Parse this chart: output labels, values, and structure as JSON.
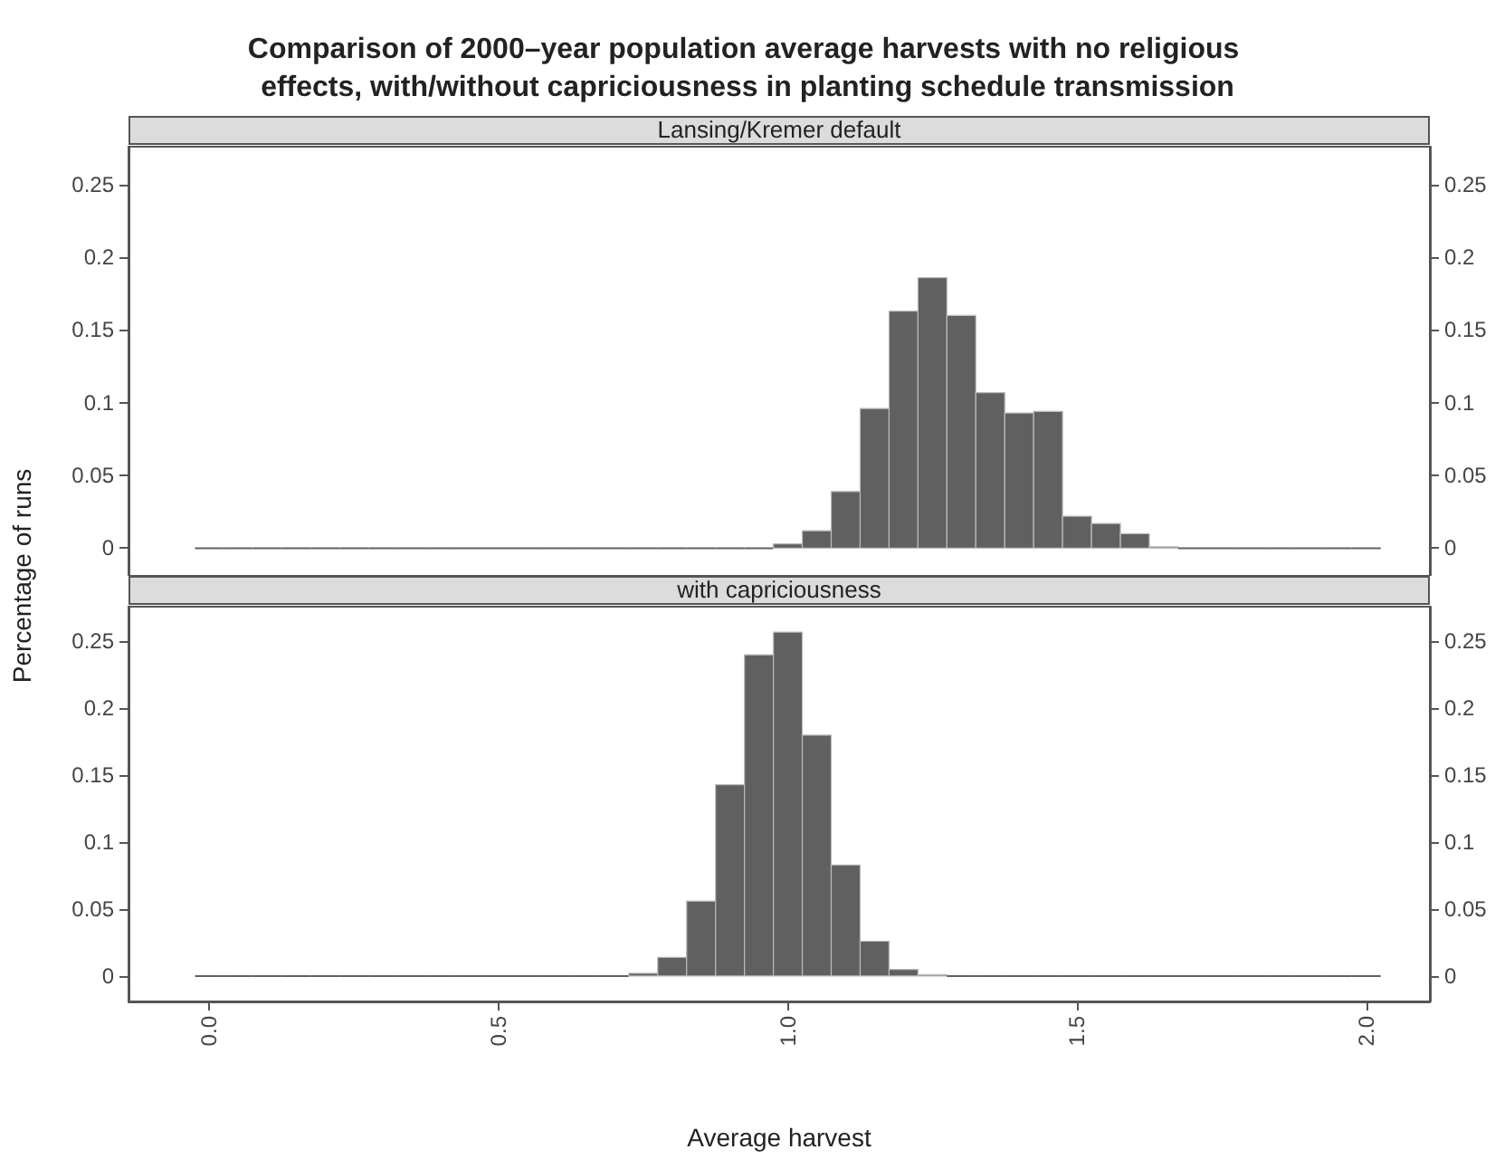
{
  "chart_data": [
    {
      "type": "histogram",
      "title": "Comparison of 2000–year population average harvests with no religious effects, with/without capriciousness in planting schedule transmission",
      "subtitle": "Lansing/Kremer default",
      "ylabel": "Percentage of runs",
      "color": "#606060",
      "bins": [
        -0.025,
        0.025,
        0.075,
        0.125,
        0.175,
        0.225,
        0.275,
        0.325,
        0.375,
        0.425,
        0.475,
        0.525,
        0.575,
        0.625,
        0.675,
        0.725,
        0.775,
        0.825,
        0.875,
        0.925,
        0.975,
        1.025,
        1.075,
        1.125,
        1.175,
        1.225,
        1.275,
        1.325,
        1.375,
        1.425,
        1.475,
        1.525,
        1.575,
        1.625,
        1.675,
        1.725,
        1.775,
        1.825,
        1.875,
        1.925,
        1.975,
        2.025
      ],
      "values": [
        0,
        0,
        0,
        0,
        0,
        0,
        0,
        0,
        0,
        0,
        0,
        0,
        0,
        0,
        0,
        0,
        0,
        0,
        0,
        0,
        0.003,
        0.012,
        0.039,
        0.096,
        0.163,
        0.186,
        0.16,
        0.107,
        0.093,
        0.094,
        0.022,
        0.017,
        0.01,
        0.001,
        0,
        0,
        0,
        0,
        0,
        0,
        0
      ],
      "xlim": [
        -0.14,
        2.11
      ],
      "ylim": [
        -0.019,
        0.276
      ],
      "yticks": [
        0,
        0.05,
        0.1,
        0.15,
        0.2,
        0.25
      ],
      "y2lim": [
        -0.019,
        0.276
      ],
      "y2ticks": [
        0,
        0.05,
        0.1,
        0.15,
        0.2,
        0.25
      ],
      "tick_labels": "y"
    },
    {
      "type": "histogram",
      "subtitle": "with capriciousness",
      "xlabel": "Average harvest",
      "color": "#606060",
      "bins": [
        -0.025,
        0.025,
        0.075,
        0.125,
        0.175,
        0.225,
        0.275,
        0.325,
        0.375,
        0.425,
        0.475,
        0.525,
        0.575,
        0.625,
        0.675,
        0.725,
        0.775,
        0.825,
        0.875,
        0.925,
        0.975,
        1.025,
        1.075,
        1.125,
        1.175,
        1.225,
        1.275,
        1.325,
        1.375,
        1.425,
        1.475,
        1.525,
        1.575,
        1.625,
        1.675,
        1.725,
        1.775,
        1.825,
        1.875,
        1.925,
        1.975,
        2.025
      ],
      "values": [
        0,
        0,
        0,
        0,
        0,
        0,
        0,
        0,
        0,
        0,
        0,
        0,
        0,
        0,
        0,
        0.002,
        0.014,
        0.056,
        0.143,
        0.24,
        0.257,
        0.18,
        0.083,
        0.026,
        0.005,
        0.001,
        0,
        0,
        0,
        0,
        0,
        0,
        0,
        0,
        0,
        0,
        0,
        0,
        0,
        0,
        0
      ],
      "xlim": [
        -0.14,
        2.11
      ],
      "xticks": [
        {
          "value": 0,
          "label": "0.0"
        },
        {
          "value": 0.5,
          "label": "0.5"
        },
        {
          "value": 1,
          "label": "1.0"
        },
        {
          "value": 1.5,
          "label": "1.5"
        },
        {
          "value": 2,
          "label": "2.0"
        }
      ],
      "ylim": [
        -0.019,
        0.276
      ],
      "yticks": [
        0,
        0.05,
        0.1,
        0.15,
        0.2,
        0.25
      ],
      "y2lim": [
        -0.019,
        0.276
      ],
      "y2ticks": [
        0,
        0.05,
        0.1,
        0.15,
        0.2,
        0.25
      ]
    }
  ]
}
